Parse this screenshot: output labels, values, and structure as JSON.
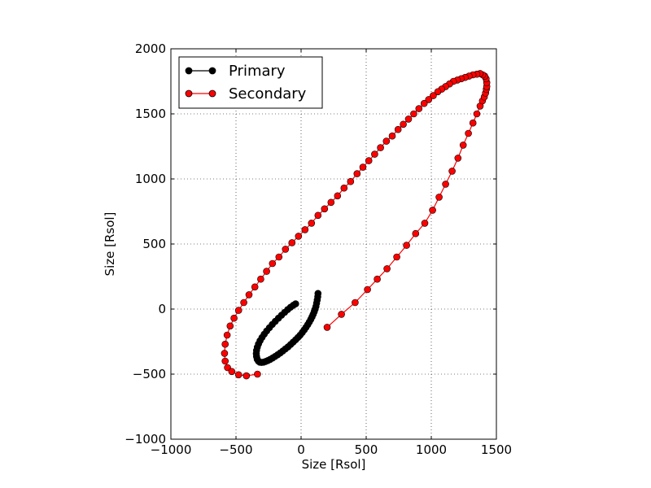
{
  "chart_data": {
    "type": "scatter",
    "xlabel": "Size [Rsol]",
    "ylabel": "Size [Rsol]",
    "xlim": [
      -1000,
      1500
    ],
    "ylim": [
      -1000,
      2000
    ],
    "xticks": [
      -1000,
      -500,
      0,
      500,
      1000,
      1500
    ],
    "yticks": [
      -1000,
      -500,
      0,
      500,
      1000,
      1500,
      2000
    ],
    "xtick_labels": [
      "−1000",
      "−500",
      "0",
      "500",
      "1000",
      "1500"
    ],
    "ytick_labels": [
      "−1000",
      "−500",
      "0",
      "500",
      "1000",
      "1500",
      "2000"
    ],
    "grid": true,
    "legend_position": "top-left",
    "series": [
      {
        "name": "Primary",
        "color": "#000000",
        "marker": "circle",
        "x": [
          130,
          128,
          124,
          119,
          114,
          108,
          101,
          93,
          84,
          74,
          63,
          51,
          38,
          24,
          9,
          -7,
          -24,
          -42,
          -61,
          -80,
          -100,
          -120,
          -140,
          -160,
          -180,
          -200,
          -219,
          -238,
          -256,
          -273,
          -289,
          -304,
          -317,
          -328,
          -337,
          -342,
          -344,
          -342,
          -336,
          -327,
          -315,
          -300,
          -283,
          -264,
          -243,
          -221,
          -198,
          -174,
          -150,
          -126,
          -103,
          -81,
          -60,
          -42
        ],
        "y": [
          120,
          95,
          70,
          45,
          20,
          0,
          -20,
          -40,
          -60,
          -80,
          -100,
          -120,
          -140,
          -160,
          -180,
          -200,
          -218,
          -236,
          -254,
          -272,
          -290,
          -306,
          -322,
          -337,
          -351,
          -364,
          -376,
          -387,
          -396,
          -403,
          -408,
          -410,
          -408,
          -400,
          -385,
          -365,
          -342,
          -318,
          -293,
          -268,
          -243,
          -218,
          -193,
          -168,
          -143,
          -118,
          -94,
          -70,
          -47,
          -25,
          -4,
          14,
          29,
          40
        ]
      },
      {
        "name": "Secondary",
        "color": "#ff0000",
        "marker": "circle",
        "x": [
          200,
          310,
          415,
          510,
          585,
          660,
          735,
          810,
          880,
          950,
          1010,
          1060,
          1110,
          1160,
          1205,
          1245,
          1285,
          1320,
          1350,
          1375,
          1393,
          1407,
          1417,
          1423,
          1426,
          1426,
          1421,
          1410,
          1395,
          1375,
          1350,
          1320,
          1290,
          1260,
          1230,
          1200,
          1170,
          1140,
          1110,
          1080,
          1050,
          1015,
          980,
          945,
          905,
          865,
          825,
          785,
          745,
          700,
          655,
          610,
          565,
          520,
          475,
          430,
          380,
          330,
          280,
          230,
          180,
          130,
          80,
          30,
          -20,
          -70,
          -120,
          -170,
          -220,
          -265,
          -310,
          -355,
          -400,
          -440,
          -480,
          -515,
          -545,
          -568,
          -583,
          -588,
          -583,
          -565,
          -532,
          -480,
          -420,
          -335
        ],
        "y": [
          -140,
          -40,
          50,
          150,
          230,
          310,
          400,
          490,
          580,
          660,
          760,
          860,
          960,
          1060,
          1160,
          1260,
          1350,
          1430,
          1500,
          1560,
          1600,
          1630,
          1660,
          1690,
          1710,
          1740,
          1770,
          1790,
          1800,
          1810,
          1805,
          1800,
          1790,
          1780,
          1770,
          1760,
          1750,
          1730,
          1710,
          1690,
          1670,
          1640,
          1610,
          1580,
          1540,
          1500,
          1460,
          1420,
          1380,
          1330,
          1290,
          1240,
          1190,
          1140,
          1090,
          1040,
          980,
          930,
          870,
          820,
          770,
          720,
          660,
          610,
          560,
          510,
          460,
          400,
          350,
          290,
          230,
          170,
          110,
          50,
          -10,
          -70,
          -130,
          -200,
          -270,
          -340,
          -400,
          -450,
          -480,
          -505,
          -513,
          -500
        ]
      }
    ]
  }
}
